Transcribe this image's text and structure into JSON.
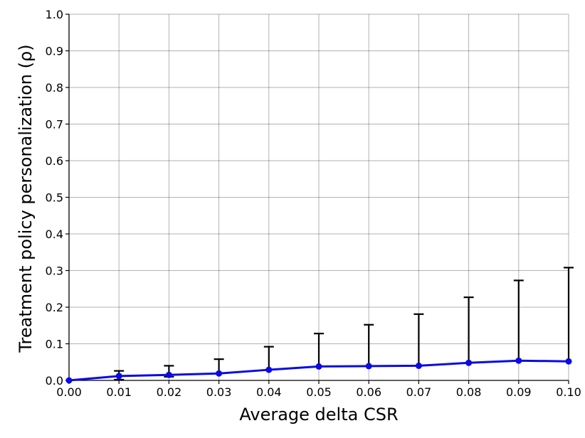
{
  "chart_data": {
    "type": "line",
    "xlabel": "Average delta CSR",
    "ylabel": "Treatment policy personalization (ρ)",
    "xlim": [
      0.0,
      0.1
    ],
    "ylim": [
      0.0,
      1.0
    ],
    "grid": true,
    "x_ticks": [
      "0.00",
      "0.01",
      "0.02",
      "0.03",
      "0.04",
      "0.05",
      "0.06",
      "0.07",
      "0.08",
      "0.09",
      "0.10"
    ],
    "y_ticks": [
      "0.0",
      "0.1",
      "0.2",
      "0.3",
      "0.4",
      "0.5",
      "0.6",
      "0.7",
      "0.8",
      "0.9",
      "1.0"
    ],
    "series": [
      {
        "color": "#0a0ae6",
        "x": [
          0.0,
          0.01,
          0.02,
          0.03,
          0.04,
          0.05,
          0.06,
          0.07,
          0.08,
          0.09,
          0.1
        ],
        "y": [
          0.0,
          0.012,
          0.015,
          0.019,
          0.029,
          0.038,
          0.039,
          0.04,
          0.048,
          0.054,
          0.052
        ],
        "err_upper": [
          0.0,
          0.014,
          0.025,
          0.039,
          0.063,
          0.09,
          0.113,
          0.141,
          0.179,
          0.219,
          0.256
        ],
        "err_lower": [
          0.0,
          0.01,
          0.005,
          0.0,
          0.0,
          0.0,
          0.0,
          0.0,
          0.0,
          0.0,
          0.0
        ]
      }
    ]
  }
}
